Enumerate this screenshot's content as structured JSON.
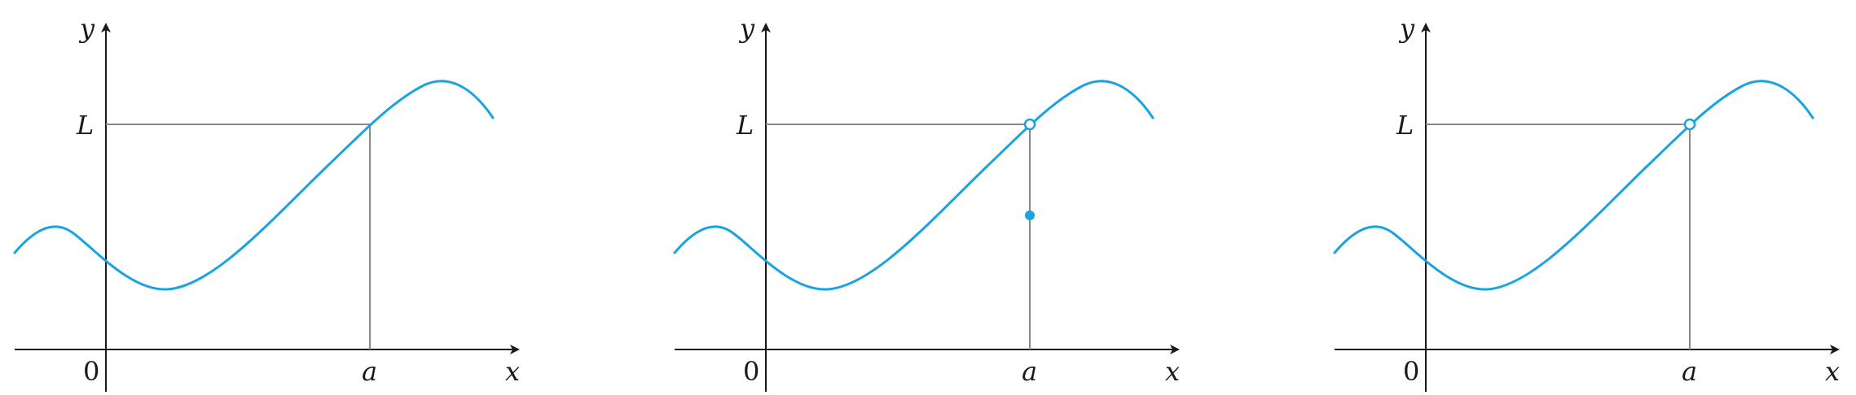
{
  "style": {
    "curve_color": "#1aa3e0",
    "axis_color": "#1a1a1a",
    "guide_color": "#8a8a8a"
  },
  "panels": [
    {
      "labels": {
        "x_axis": "x",
        "y_axis": "y",
        "origin": "0",
        "a_tick": "a",
        "L_tick": "L"
      },
      "point_at_a": "on-curve",
      "extra_point": "none"
    },
    {
      "labels": {
        "x_axis": "x",
        "y_axis": "y",
        "origin": "0",
        "a_tick": "a",
        "L_tick": "L"
      },
      "point_at_a": "open-circle",
      "extra_point": "filled-below"
    },
    {
      "labels": {
        "x_axis": "x",
        "y_axis": "y",
        "origin": "0",
        "a_tick": "a",
        "L_tick": "L"
      },
      "point_at_a": "open-circle",
      "extra_point": "none"
    }
  ]
}
